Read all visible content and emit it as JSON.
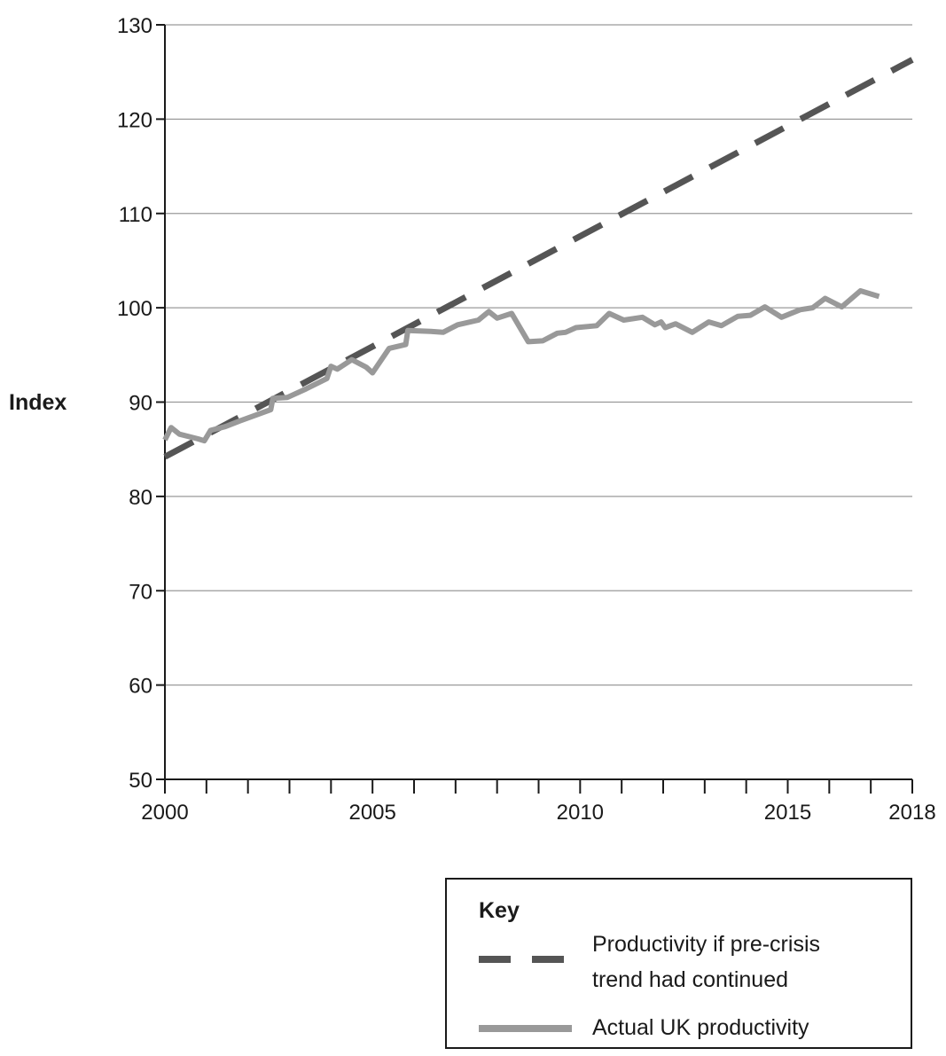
{
  "chart_data": {
    "type": "line",
    "ylabel": "Index",
    "xlabel": "",
    "xlim": [
      2000,
      2018
    ],
    "ylim": [
      50,
      130
    ],
    "x_ticks": [
      2000,
      2005,
      2010,
      2015,
      2018
    ],
    "x_minor_ticks": [
      2001,
      2002,
      2003,
      2004,
      2006,
      2007,
      2008,
      2009,
      2011,
      2012,
      2013,
      2014,
      2016,
      2017
    ],
    "y_ticks": [
      50,
      60,
      70,
      80,
      90,
      100,
      110,
      120,
      130
    ],
    "grid": "horizontal",
    "legend": {
      "title": "Key",
      "placement": "bottom-right",
      "entries": [
        {
          "series": "trend",
          "lines": [
            "Productivity if pre-crisis",
            "trend had continued"
          ]
        },
        {
          "series": "actual",
          "lines": [
            "Actual UK productivity"
          ]
        }
      ]
    },
    "series": [
      {
        "name": "Productivity if pre-crisis trend had continued",
        "key": "trend",
        "style": "dashed",
        "color": "#555555",
        "points": [
          [
            2000,
            84.2
          ],
          [
            2018,
            126.3
          ]
        ]
      },
      {
        "name": "Actual UK productivity",
        "key": "actual",
        "style": "solid",
        "color": "#999999",
        "points": [
          [
            2000.0,
            86.0
          ],
          [
            2000.15,
            87.3
          ],
          [
            2000.35,
            86.6
          ],
          [
            2000.8,
            86.1
          ],
          [
            2000.95,
            85.9
          ],
          [
            2001.1,
            87.0
          ],
          [
            2001.45,
            87.4
          ],
          [
            2001.8,
            88.0
          ],
          [
            2002.3,
            88.8
          ],
          [
            2002.55,
            89.2
          ],
          [
            2002.6,
            90.4
          ],
          [
            2002.95,
            90.5
          ],
          [
            2003.4,
            91.4
          ],
          [
            2003.9,
            92.5
          ],
          [
            2004.0,
            93.8
          ],
          [
            2004.15,
            93.5
          ],
          [
            2004.5,
            94.5
          ],
          [
            2004.85,
            93.7
          ],
          [
            2005.0,
            93.1
          ],
          [
            2005.4,
            95.7
          ],
          [
            2005.8,
            96.1
          ],
          [
            2005.85,
            97.6
          ],
          [
            2006.4,
            97.5
          ],
          [
            2006.7,
            97.4
          ],
          [
            2007.05,
            98.2
          ],
          [
            2007.55,
            98.7
          ],
          [
            2007.8,
            99.6
          ],
          [
            2008.0,
            98.9
          ],
          [
            2008.35,
            99.4
          ],
          [
            2008.75,
            96.4
          ],
          [
            2009.1,
            96.5
          ],
          [
            2009.45,
            97.3
          ],
          [
            2009.65,
            97.4
          ],
          [
            2009.9,
            97.9
          ],
          [
            2010.4,
            98.1
          ],
          [
            2010.7,
            99.4
          ],
          [
            2011.05,
            98.7
          ],
          [
            2011.5,
            99.0
          ],
          [
            2011.8,
            98.2
          ],
          [
            2011.95,
            98.5
          ],
          [
            2012.05,
            97.9
          ],
          [
            2012.3,
            98.3
          ],
          [
            2012.7,
            97.4
          ],
          [
            2013.1,
            98.5
          ],
          [
            2013.4,
            98.1
          ],
          [
            2013.8,
            99.1
          ],
          [
            2014.1,
            99.2
          ],
          [
            2014.45,
            100.1
          ],
          [
            2014.85,
            99.0
          ],
          [
            2015.3,
            99.8
          ],
          [
            2015.6,
            100.0
          ],
          [
            2015.9,
            101.0
          ],
          [
            2016.3,
            100.1
          ],
          [
            2016.75,
            101.8
          ],
          [
            2017.2,
            101.2
          ]
        ]
      }
    ]
  }
}
